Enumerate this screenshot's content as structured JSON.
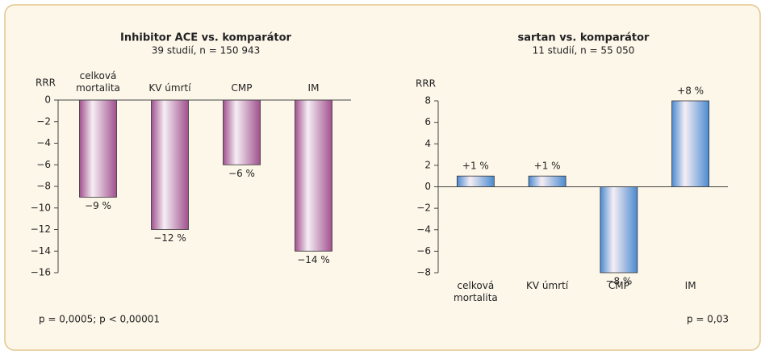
{
  "chart_data": [
    {
      "type": "bar",
      "title": "Inhibitor ACE vs. komparátor",
      "subtitle": "39 studií, n = 150 943",
      "ylabel": "RRR",
      "categories": [
        "celková mortalita",
        "KV úmrtí",
        "CMP",
        "IM"
      ],
      "values": [
        -9,
        -12,
        -6,
        -14
      ],
      "value_labels": [
        "−9 %",
        "−12 %",
        "−6 %",
        "−14 %"
      ],
      "color": "#a0508e",
      "category_position": "top",
      "ylim": [
        -16,
        0
      ],
      "yticks": [
        0,
        {
          "value": -2,
          "label": "−2"
        },
        {
          "value": -4,
          "label": "−4"
        },
        {
          "value": -6,
          "label": "−6"
        },
        {
          "value": -8,
          "label": "−8"
        },
        {
          "value": -10,
          "label": "−10"
        },
        {
          "value": -12,
          "label": "−12"
        },
        {
          "value": -14,
          "label": "−14"
        },
        {
          "value": -16,
          "label": "−16"
        }
      ],
      "note": "p = 0,0005; p < 0,00001"
    },
    {
      "type": "bar",
      "title": "sartan vs. komparátor",
      "subtitle": "11 studií, n = 55 050",
      "ylabel": "RRR",
      "categories": [
        "celková mortalita",
        "KV úmrtí",
        "CMP",
        "IM"
      ],
      "values": [
        1,
        1,
        -8,
        8
      ],
      "value_labels": [
        "+1 %",
        "+1 %",
        "−8 %",
        "+8 %"
      ],
      "color": "#4a8ad0",
      "category_position": "bottom",
      "ylim": [
        -8,
        8
      ],
      "yticks": [
        8,
        6,
        4,
        2,
        0,
        {
          "value": -2,
          "label": "−2"
        },
        {
          "value": -4,
          "label": "−4"
        },
        {
          "value": -6,
          "label": "−6"
        },
        {
          "value": -8,
          "label": "−8"
        }
      ],
      "note": "p = 0,03"
    }
  ]
}
